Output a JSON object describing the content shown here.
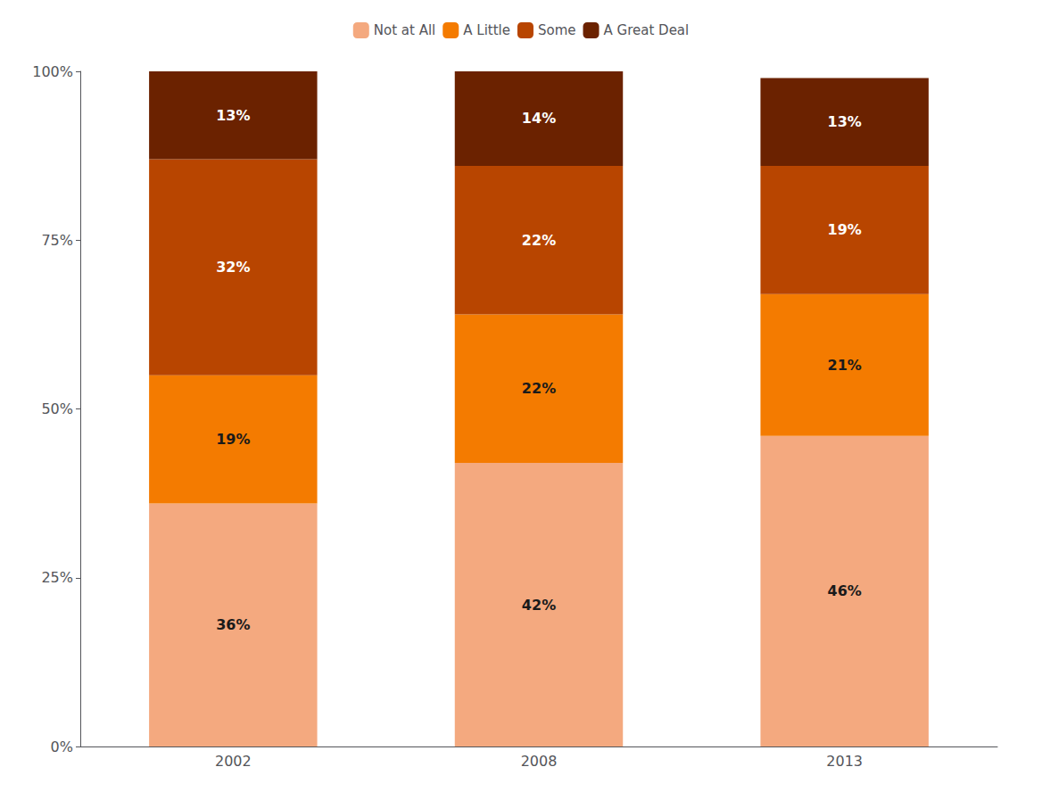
{
  "chart_data": {
    "type": "bar",
    "stacked": true,
    "categories": [
      "2002",
      "2008",
      "2013"
    ],
    "series": [
      {
        "name": "Not at All",
        "color": "#F4A97F",
        "values": [
          36,
          42,
          46
        ],
        "value_labels": [
          "36%",
          "42%",
          "46%"
        ]
      },
      {
        "name": "A Little",
        "color": "#F47B00",
        "values": [
          19,
          22,
          21
        ],
        "value_labels": [
          "19%",
          "22%",
          "21%"
        ]
      },
      {
        "name": "Some",
        "color": "#B84500",
        "values": [
          32,
          22,
          19
        ],
        "value_labels": [
          "32%",
          "22%",
          "19%"
        ]
      },
      {
        "name": "A Great Deal",
        "color": "#6B2200",
        "values": [
          13,
          14,
          13
        ],
        "value_labels": [
          "13%",
          "14%",
          "13%"
        ]
      }
    ],
    "ylim": [
      0,
      100
    ],
    "yticks": [
      {
        "value": 0,
        "label": "0%"
      },
      {
        "value": 25,
        "label": "25%"
      },
      {
        "value": 50,
        "label": "50%"
      },
      {
        "value": 75,
        "label": "75%"
      },
      {
        "value": 100,
        "label": "100%"
      }
    ],
    "grid": false,
    "legend": "top",
    "data_labels": true
  }
}
